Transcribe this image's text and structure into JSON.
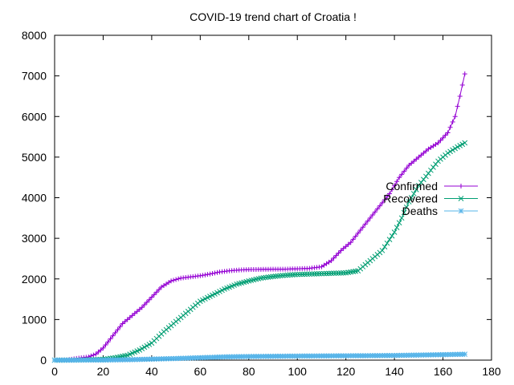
{
  "chart_data": {
    "type": "line",
    "title": "COVID-19 trend chart of Croatia !",
    "xlabel": "",
    "ylabel": "",
    "xlim": [
      0,
      180
    ],
    "ylim": [
      0,
      8000
    ],
    "xticks": [
      0,
      20,
      40,
      60,
      80,
      100,
      120,
      140,
      160,
      180
    ],
    "yticks": [
      0,
      1000,
      2000,
      3000,
      4000,
      5000,
      6000,
      7000,
      8000
    ],
    "grid": false,
    "legend_position": "right",
    "series": [
      {
        "name": "Confirmed",
        "color": "#9400d3",
        "marker": "plus",
        "points": [
          [
            0,
            1
          ],
          [
            5,
            5
          ],
          [
            10,
            50
          ],
          [
            14,
            80
          ],
          [
            17,
            150
          ],
          [
            20,
            300
          ],
          [
            24,
            600
          ],
          [
            28,
            900
          ],
          [
            32,
            1100
          ],
          [
            36,
            1300
          ],
          [
            40,
            1550
          ],
          [
            44,
            1800
          ],
          [
            48,
            1950
          ],
          [
            52,
            2020
          ],
          [
            56,
            2050
          ],
          [
            60,
            2080
          ],
          [
            64,
            2120
          ],
          [
            68,
            2170
          ],
          [
            72,
            2200
          ],
          [
            76,
            2220
          ],
          [
            80,
            2230
          ],
          [
            85,
            2235
          ],
          [
            90,
            2240
          ],
          [
            95,
            2240
          ],
          [
            100,
            2250
          ],
          [
            105,
            2260
          ],
          [
            110,
            2300
          ],
          [
            114,
            2450
          ],
          [
            118,
            2700
          ],
          [
            122,
            2900
          ],
          [
            126,
            3200
          ],
          [
            130,
            3500
          ],
          [
            134,
            3800
          ],
          [
            138,
            4100
          ],
          [
            142,
            4500
          ],
          [
            146,
            4800
          ],
          [
            150,
            5000
          ],
          [
            154,
            5200
          ],
          [
            158,
            5350
          ],
          [
            162,
            5600
          ],
          [
            165,
            6000
          ],
          [
            167,
            6500
          ],
          [
            169,
            7050
          ]
        ]
      },
      {
        "name": "Recovered",
        "color": "#009e73",
        "marker": "cross",
        "points": [
          [
            0,
            0
          ],
          [
            10,
            2
          ],
          [
            20,
            20
          ],
          [
            25,
            60
          ],
          [
            30,
            120
          ],
          [
            35,
            250
          ],
          [
            40,
            420
          ],
          [
            45,
            700
          ],
          [
            50,
            950
          ],
          [
            55,
            1200
          ],
          [
            60,
            1450
          ],
          [
            65,
            1600
          ],
          [
            70,
            1750
          ],
          [
            75,
            1870
          ],
          [
            80,
            1950
          ],
          [
            85,
            2020
          ],
          [
            90,
            2060
          ],
          [
            95,
            2090
          ],
          [
            100,
            2110
          ],
          [
            105,
            2120
          ],
          [
            110,
            2130
          ],
          [
            115,
            2140
          ],
          [
            120,
            2150
          ],
          [
            125,
            2200
          ],
          [
            130,
            2450
          ],
          [
            135,
            2700
          ],
          [
            140,
            3150
          ],
          [
            143,
            3500
          ],
          [
            146,
            3900
          ],
          [
            150,
            4300
          ],
          [
            154,
            4600
          ],
          [
            158,
            4900
          ],
          [
            162,
            5100
          ],
          [
            166,
            5250
          ],
          [
            169,
            5350
          ]
        ]
      },
      {
        "name": "Deaths",
        "color": "#56b4e9",
        "marker": "star",
        "points": [
          [
            0,
            0
          ],
          [
            20,
            2
          ],
          [
            30,
            10
          ],
          [
            40,
            25
          ],
          [
            50,
            40
          ],
          [
            60,
            60
          ],
          [
            70,
            80
          ],
          [
            80,
            90
          ],
          [
            90,
            95
          ],
          [
            100,
            100
          ],
          [
            110,
            103
          ],
          [
            120,
            107
          ],
          [
            130,
            110
          ],
          [
            140,
            115
          ],
          [
            150,
            125
          ],
          [
            160,
            135
          ],
          [
            169,
            145
          ]
        ]
      }
    ]
  }
}
